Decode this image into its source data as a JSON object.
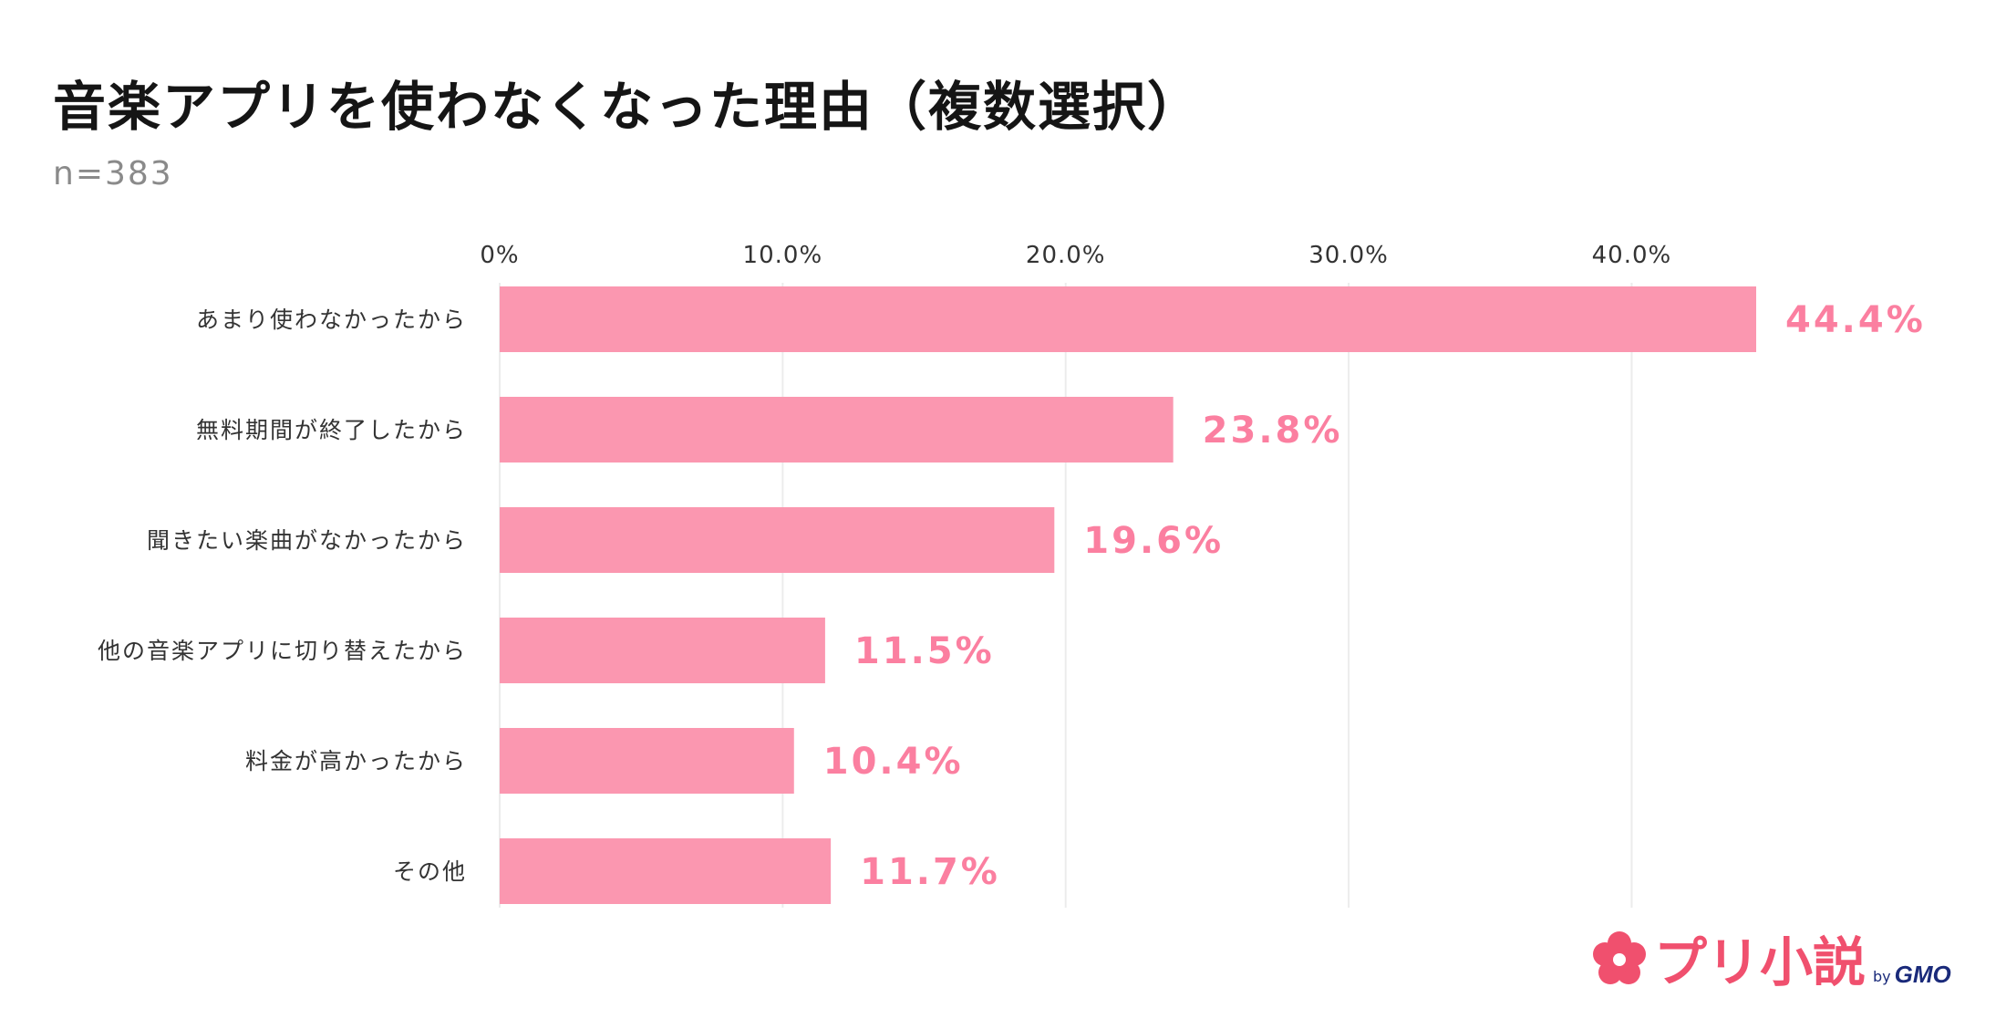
{
  "title": "音楽アプリを使わなくなった理由（複数選択）",
  "subtitle": "n=383",
  "colors": {
    "bar": "#fb97b0",
    "value_label": "#fb7fa0",
    "grid": "#ececec",
    "logo": "#f0506e"
  },
  "logo": {
    "icon": "flower-logo-icon",
    "text": "プリ小説",
    "by": "by",
    "company": "GMO"
  },
  "chart_data": {
    "type": "bar",
    "orientation": "horizontal",
    "title": "音楽アプリを使わなくなった理由（複数選択）",
    "xlim": [
      0,
      44.4
    ],
    "x_ticks": [
      0,
      10,
      20,
      30,
      40
    ],
    "x_tick_labels": [
      "0%",
      "10.0%",
      "20.0%",
      "30.0%",
      "40.0%"
    ],
    "grid": true,
    "categories": [
      "あまり使わなかったから",
      "無料期間が終了したから",
      "聞きたい楽曲がなかったから",
      "他の音楽アプリに切り替えたから",
      "料金が高かったから",
      "その他"
    ],
    "values": [
      44.4,
      23.8,
      19.6,
      11.5,
      10.4,
      11.7
    ],
    "value_labels": [
      "44.4%",
      "23.8%",
      "19.6%",
      "11.5%",
      "10.4%",
      "11.7%"
    ]
  }
}
